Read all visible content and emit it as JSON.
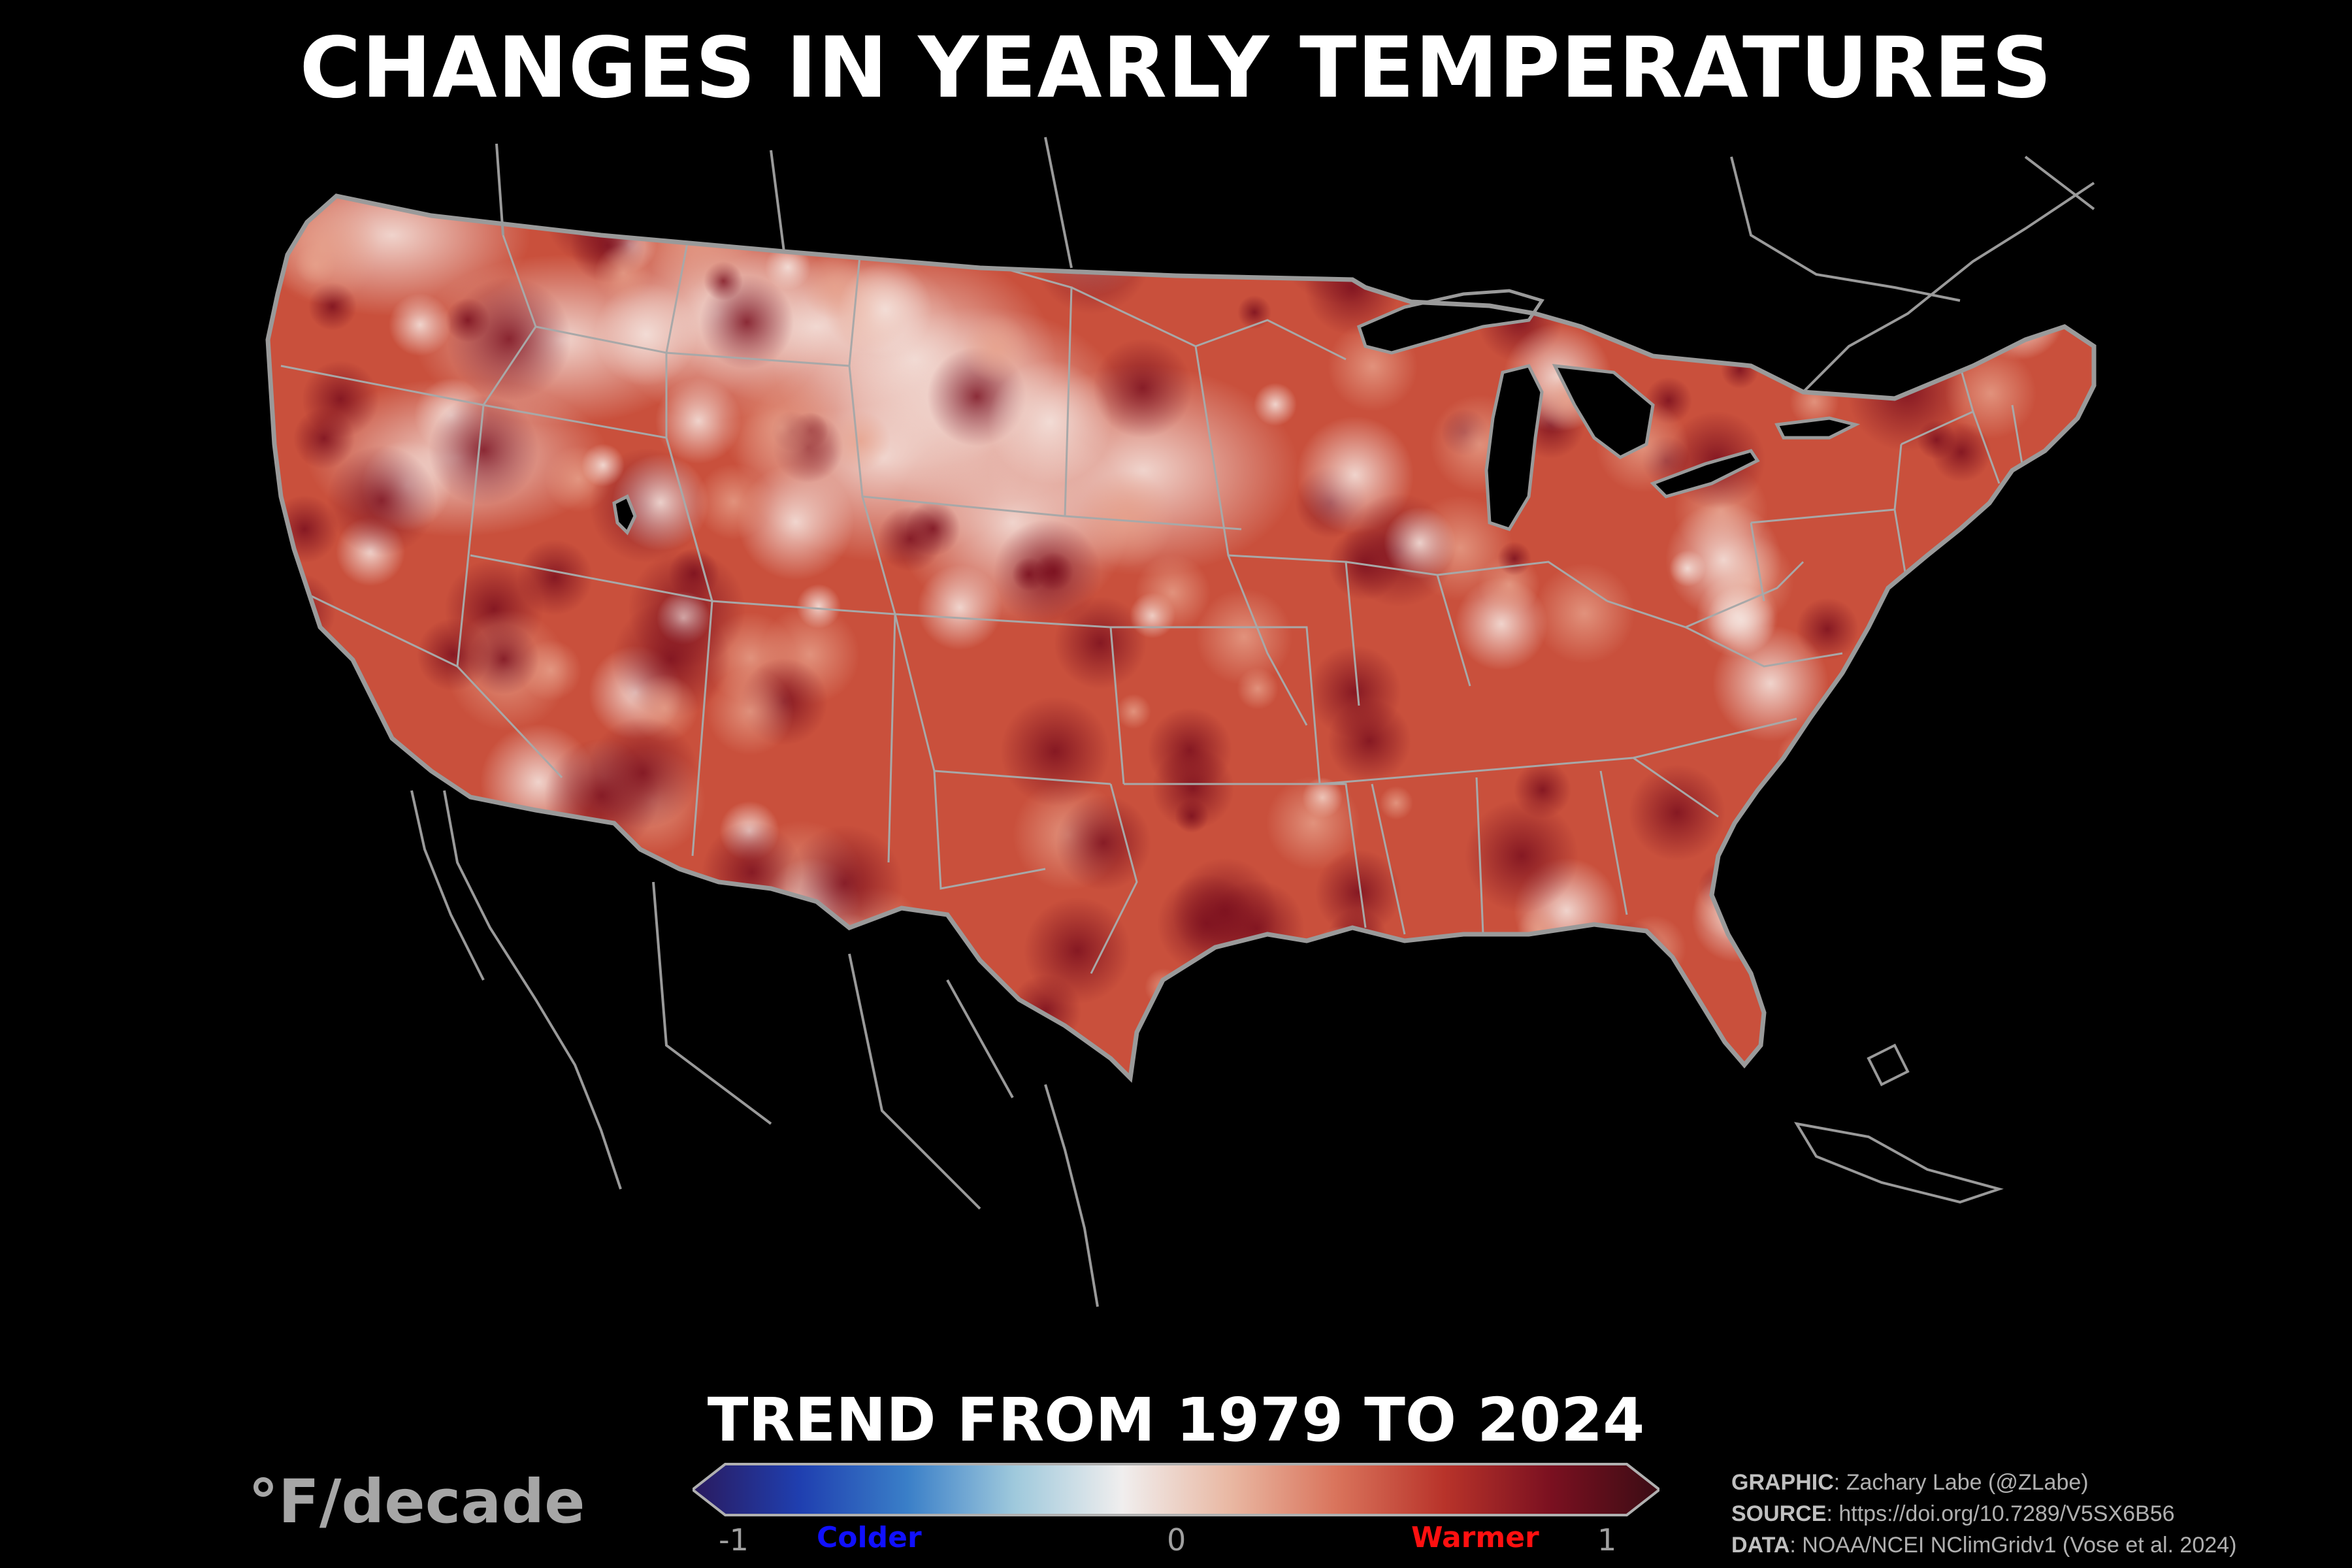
{
  "title": "CHANGES IN YEARLY TEMPERATURES",
  "subtitle": "TREND FROM 1979 TO 2024",
  "units": "°F/decade",
  "legend": {
    "ticks": [
      "-1",
      "0",
      "1"
    ],
    "colder_label": "Colder",
    "warmer_label": "Warmer",
    "colors": [
      "#2a1a5e",
      "#1f3fb0",
      "#3a7fc8",
      "#9fc9dc",
      "#f0eeee",
      "#e9b8a3",
      "#d9735b",
      "#b8332a",
      "#7a1020",
      "#3a0c14"
    ],
    "colder_color": "#1010ff",
    "warmer_color": "#ff1010"
  },
  "credits": {
    "graphic_key": "GRAPHIC",
    "graphic_value": ": Zachary Labe (@ZLabe)",
    "source_key": "SOURCE",
    "source_value": ": https://doi.org/10.7289/V5SX6B56",
    "data_key": "DATA",
    "data_value": ": NOAA/NCEI NClimGridv1 (Vose et al. 2024)"
  },
  "map": {
    "background": "#000000",
    "land_base_color": "#c9503c",
    "border_color": "#9a9a9a"
  }
}
